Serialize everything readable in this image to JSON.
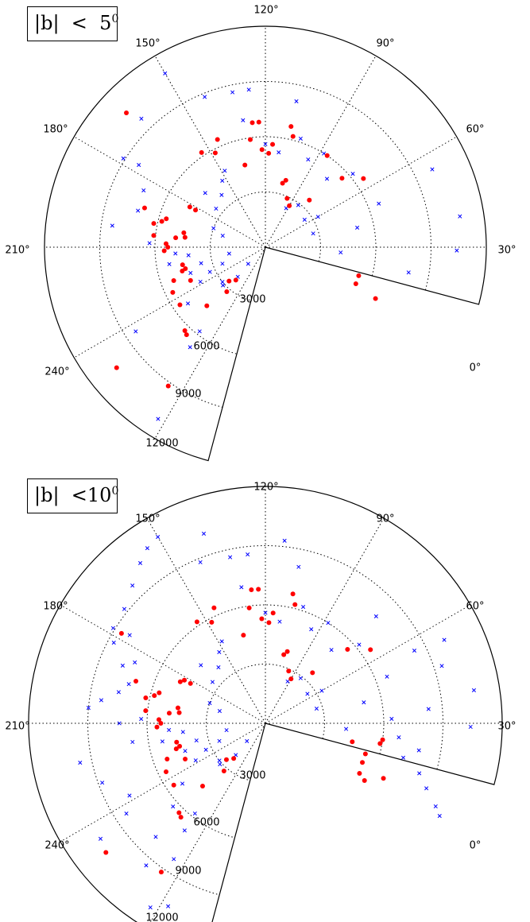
{
  "panels": [
    {
      "label_main": "|b|  <  5",
      "label_sup": "0",
      "angle_labels": [
        "120°",
        "150°",
        "90°",
        "180°",
        "60°",
        "210°",
        "30°",
        "240°",
        "0°"
      ],
      "radius_labels": [
        "3000",
        "6000",
        "9000",
        "12000"
      ]
    },
    {
      "label_main": "|b|  <10",
      "label_sup": "0",
      "angle_labels": [
        "120°",
        "150°",
        "90°",
        "180°",
        "60°",
        "210°",
        "30°",
        "240°",
        "0°"
      ],
      "radius_labels": [
        "3000",
        "6000",
        "9000",
        "12000"
      ]
    }
  ],
  "colors": {
    "red_marker": "#ff0000",
    "blue_marker": "#0000ff",
    "grid": "#000000"
  },
  "chart_data": [
    {
      "type": "scatter",
      "projection": "polar wedge (angle = galactic longitude, radius = velocity)",
      "angle_range_deg": [
        -15,
        255
      ],
      "radius_range": [
        0,
        12000
      ],
      "radius_ticks": [
        3000,
        6000,
        9000,
        12000
      ],
      "angle_ticks": [
        0,
        30,
        60,
        90,
        120,
        150,
        180,
        210,
        240
      ],
      "series": [
        {
          "marker": "dot",
          "color": "#ff0000",
          "points": [
            [
              136,
              10500
            ],
            [
              162,
              6900
            ],
            [
              152,
              4300
            ],
            [
              152,
              4650
            ],
            [
              164,
              5600
            ],
            [
              166,
              5800
            ],
            [
              168,
              6200
            ],
            [
              174,
              6100
            ],
            [
              178,
              5400
            ],
            [
              174,
              4900
            ],
            [
              173,
              4400
            ],
            [
              170,
              4500
            ],
            [
              180,
              5300
            ],
            [
              182,
              5500
            ],
            [
              196,
              4700
            ],
            [
              195,
              4500
            ],
            [
              192,
              4600
            ],
            [
              200,
              5300
            ],
            [
              204,
              4450
            ],
            [
              206,
              5600
            ],
            [
              214,
              5600
            ],
            [
              219,
              10400
            ],
            [
              226,
              6300
            ],
            [
              228,
              6400
            ],
            [
              225,
              4500
            ],
            [
              228,
              2400
            ],
            [
              223,
              2700
            ],
            [
              235,
              9200
            ],
            [
              229,
              3200
            ],
            [
              118,
              5800
            ],
            [
              124,
              6200
            ],
            [
              114,
              6400
            ],
            [
              104,
              4600
            ],
            [
              98,
              5900
            ],
            [
              96,
              6800
            ],
            [
              93,
              6800
            ],
            [
              92,
              5300
            ],
            [
              88,
              5100
            ],
            [
              86,
              5600
            ],
            [
              78,
              6700
            ],
            [
              76,
              6200
            ],
            [
              73,
              3800
            ],
            [
              66,
              2900
            ],
            [
              75,
              3600
            ],
            [
              60,
              2600
            ],
            [
              56,
              6000
            ],
            [
              47,
              3500
            ],
            [
              42,
              5600
            ],
            [
              35,
              6500
            ],
            [
              -17,
              5300
            ],
            [
              -22,
              5300
            ],
            [
              -25,
              6600
            ]
          ]
        },
        {
          "marker": "x",
          "color": "#0000ff",
          "points": [
            [
              120,
              10900
            ],
            [
              134,
              9700
            ],
            [
              148,
              9100
            ],
            [
              147,
              8200
            ],
            [
              155,
              7300
            ],
            [
              164,
              7200
            ],
            [
              172,
              8400
            ],
            [
              178,
              6300
            ],
            [
              184,
              4900
            ],
            [
              186,
              4200
            ],
            [
              190,
              5300
            ],
            [
              194,
              3600
            ],
            [
              199,
              4300
            ],
            [
              204,
              3300
            ],
            [
              208,
              4000
            ],
            [
              213,
              8400
            ],
            [
              216,
              5200
            ],
            [
              219,
              3000
            ],
            [
              222,
              3100
            ],
            [
              224,
              1300
            ],
            [
              227,
              2200
            ],
            [
              233,
              6800
            ],
            [
              238,
              11000
            ],
            [
              232,
              5800
            ],
            [
              118,
              4700
            ],
            [
              123,
              4300
            ],
            [
              130,
              3700
            ],
            [
              138,
              4400
            ],
            [
              142,
              3400
            ],
            [
              160,
              3000
            ],
            [
              165,
              2400
            ],
            [
              190,
              2000
            ],
            [
              201,
              2500
            ],
            [
              112,
              8800
            ],
            [
              102,
              8600
            ],
            [
              96,
              8600
            ],
            [
              100,
              7000
            ],
            [
              90,
              5600
            ],
            [
              82,
              5200
            ],
            [
              78,
              8100
            ],
            [
              72,
              6200
            ],
            [
              64,
              5300
            ],
            [
              62,
              2400
            ],
            [
              58,
              6000
            ],
            [
              52,
              2900
            ],
            [
              48,
              5000
            ],
            [
              40,
              6200
            ],
            [
              35,
              2600
            ],
            [
              30,
              3300
            ],
            [
              25,
              10000
            ],
            [
              16,
              2700
            ],
            [
              9,
              10700
            ],
            [
              -1,
              10400
            ],
            [
              -10,
              7900
            ],
            [
              -4,
              4100
            ],
            [
              12,
              5100
            ],
            [
              21,
              6600
            ]
          ]
        }
      ]
    },
    {
      "type": "scatter",
      "projection": "polar wedge (angle = galactic longitude, radius = velocity)",
      "angle_range_deg": [
        -15,
        255
      ],
      "radius_range": [
        0,
        12000
      ],
      "radius_ticks": [
        3000,
        6000,
        9000,
        12000
      ],
      "angle_ticks": [
        0,
        30,
        60,
        90,
        120,
        150,
        180,
        210,
        240
      ],
      "series": [
        {
          "marker": "dot",
          "color": "#ff0000",
          "points": [
            [
              148,
              8600
            ],
            [
              162,
              6900
            ],
            [
              152,
              4300
            ],
            [
              152,
              4650
            ],
            [
              154,
              4800
            ],
            [
              164,
              5600
            ],
            [
              166,
              5800
            ],
            [
              168,
              6200
            ],
            [
              174,
              6100
            ],
            [
              178,
              5400
            ],
            [
              174,
              4900
            ],
            [
              173,
              4400
            ],
            [
              170,
              4500
            ],
            [
              180,
              5300
            ],
            [
              182,
              5500
            ],
            [
              196,
              4700
            ],
            [
              195,
              4500
            ],
            [
              192,
              4600
            ],
            [
              200,
              5300
            ],
            [
              204,
              4450
            ],
            [
              206,
              5600
            ],
            [
              214,
              5600
            ],
            [
              219,
              10400
            ],
            [
              226,
              6300
            ],
            [
              228,
              6400
            ],
            [
              225,
              4500
            ],
            [
              228,
              2400
            ],
            [
              223,
              2700
            ],
            [
              235,
              9200
            ],
            [
              229,
              3200
            ],
            [
              124,
              6200
            ],
            [
              118,
              5800
            ],
            [
              114,
              6400
            ],
            [
              104,
              4600
            ],
            [
              98,
              5900
            ],
            [
              96,
              6800
            ],
            [
              93,
              6800
            ],
            [
              92,
              5300
            ],
            [
              88,
              5100
            ],
            [
              86,
              5600
            ],
            [
              78,
              6700
            ],
            [
              76,
              6200
            ],
            [
              73,
              3800
            ],
            [
              66,
              2900
            ],
            [
              75,
              3600
            ],
            [
              60,
              2600
            ],
            [
              47,
              3500
            ],
            [
              42,
              5600
            ],
            [
              35,
              6500
            ],
            [
              -12,
              4500
            ],
            [
              -17,
              5300
            ],
            [
              -22,
              5300
            ],
            [
              -25,
              6600
            ],
            [
              -28,
              5400
            ],
            [
              -30,
              5800
            ],
            [
              -8,
              6000
            ],
            [
              -10,
              5900
            ]
          ]
        },
        {
          "marker": "x",
          "color": "#0000ff",
          "points": [
            [
              120,
              10900
            ],
            [
              124,
              10700
            ],
            [
              128,
              10300
            ],
            [
              134,
              9700
            ],
            [
              141,
              9200
            ],
            [
              148,
              9100
            ],
            [
              152,
              8700
            ],
            [
              147,
              8200
            ],
            [
              155,
              7300
            ],
            [
              158,
              7800
            ],
            [
              164,
              7200
            ],
            [
              168,
              7600
            ],
            [
              172,
              8400
            ],
            [
              175,
              9000
            ],
            [
              178,
              6300
            ],
            [
              180,
              7400
            ],
            [
              184,
              4900
            ],
            [
              186,
              4200
            ],
            [
              188,
              6800
            ],
            [
              190,
              5300
            ],
            [
              192,
              9600
            ],
            [
              194,
              3600
            ],
            [
              199,
              4300
            ],
            [
              200,
              8800
            ],
            [
              204,
              3300
            ],
            [
              208,
              4000
            ],
            [
              208,
              7800
            ],
            [
              213,
              8400
            ],
            [
              215,
              10200
            ],
            [
              216,
              5200
            ],
            [
              219,
              3000
            ],
            [
              222,
              3100
            ],
            [
              222,
              6300
            ],
            [
              224,
              1300
            ],
            [
              226,
              8000
            ],
            [
              227,
              2200
            ],
            [
              230,
              9400
            ],
            [
              233,
              6800
            ],
            [
              236,
              8300
            ],
            [
              238,
              11000
            ],
            [
              242,
              10500
            ],
            [
              232,
              5800
            ],
            [
              118,
              4700
            ],
            [
              123,
              4300
            ],
            [
              130,
              3700
            ],
            [
              138,
              4400
            ],
            [
              142,
              3400
            ],
            [
              160,
              3000
            ],
            [
              165,
              2400
            ],
            [
              190,
              2000
            ],
            [
              201,
              2500
            ],
            [
              112,
              8800
            ],
            [
              108,
              10100
            ],
            [
              102,
              8600
            ],
            [
              96,
              8600
            ],
            [
              100,
              7000
            ],
            [
              90,
              5600
            ],
            [
              84,
              9300
            ],
            [
              82,
              5200
            ],
            [
              78,
              8100
            ],
            [
              72,
              6200
            ],
            [
              64,
              5300
            ],
            [
              62,
              2400
            ],
            [
              58,
              6000
            ],
            [
              52,
              2900
            ],
            [
              48,
              5000
            ],
            [
              44,
              7800
            ],
            [
              40,
              6200
            ],
            [
              35,
              2600
            ],
            [
              30,
              3300
            ],
            [
              26,
              8400
            ],
            [
              25,
              10000
            ],
            [
              16,
              2700
            ],
            [
              12,
              5100
            ],
            [
              9,
              10700
            ],
            [
              5,
              8300
            ],
            [
              -1,
              10400
            ],
            [
              -4,
              4100
            ],
            [
              -6,
              6800
            ],
            [
              -10,
              7900
            ],
            [
              -14,
              7200
            ],
            [
              -18,
              8200
            ],
            [
              -22,
              8800
            ],
            [
              -26,
              9600
            ],
            [
              -28,
              10000
            ],
            [
              21,
              6600
            ],
            [
              18,
              9400
            ],
            [
              2,
              6400
            ]
          ]
        }
      ]
    }
  ]
}
